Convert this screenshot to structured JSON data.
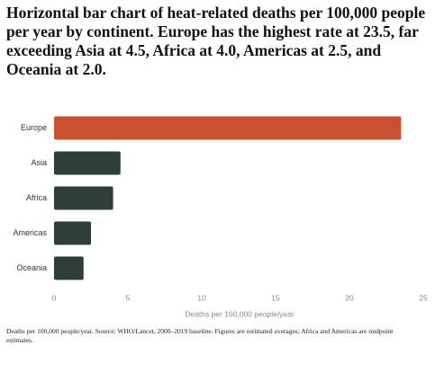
{
  "chart_data": {
    "type": "bar",
    "orientation": "horizontal",
    "title": "Horizontal bar chart of heat-related deaths per 100,000 people per year by continent. Europe has the highest rate at 23.5, far exceeding Asia at 4.5, Africa at 4.0, Americas at 2.5, and Oceania at 2.0.",
    "categories": [
      "Europe",
      "Asia",
      "Africa",
      "Americas",
      "Oceania"
    ],
    "values": [
      23.5,
      4.5,
      4.0,
      2.5,
      2.0
    ],
    "colors": [
      "#c9512f",
      "#2d3f37",
      "#2d3f37",
      "#2d3f37",
      "#2d3f37"
    ],
    "xlabel": "Deaths per 100,000 people/year",
    "xlim": [
      0,
      25
    ],
    "xticks": [
      0,
      5,
      10,
      15,
      20,
      25
    ],
    "grid": false,
    "note": "Deaths per 100,000 people/year. Source: WHO/Lancet, 2000–2019 baseline. Figures are estimated averages; Africa and Americas are midpoint estimates."
  }
}
